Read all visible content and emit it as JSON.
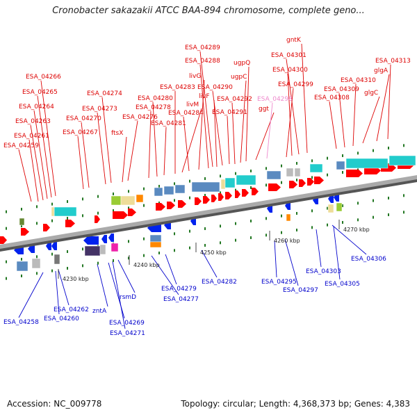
{
  "title": "Cronobacter sakazakii ATCC BAA-894 chromosome, complete geno...",
  "footer": {
    "accession": "Accession: NC_009778",
    "topology": "Topology: circular; Length: 4,368,373 bp; Genes: 4,383"
  },
  "colors": {
    "forward_label": "#dd0000",
    "reverse_label": "#0000cc",
    "highlight_label": "#ee88cc",
    "cds": "#ff0000",
    "cds_reverse": "#0022ee",
    "cog_blue": "#5a8ac0",
    "cog_cyan": "#22cccc",
    "cog_grey": "#bbbbbb",
    "cog_green": "#99cc33",
    "cog_khaki": "#eedd99",
    "cog_orange": "#ff8800",
    "cog_purple": "#443366",
    "cog_magenta": "#ee22aa",
    "backbone": "#888888",
    "tick": "#227722"
  },
  "ticks": [
    {
      "text": "4230 kbp"
    },
    {
      "text": "4240 kbp"
    },
    {
      "text": "4250 kbp"
    },
    {
      "text": "4260 kbp"
    },
    {
      "text": "4270 kbp"
    }
  ],
  "forward_labels": [
    {
      "text": "ESA_04259"
    },
    {
      "text": "ESA_04261"
    },
    {
      "text": "ESA_04263"
    },
    {
      "text": "ESA_04264"
    },
    {
      "text": "ESA_04265"
    },
    {
      "text": "ESA_04266"
    },
    {
      "text": "ESA_04267"
    },
    {
      "text": "ESA_04270"
    },
    {
      "text": "ESA_04273"
    },
    {
      "text": "ESA_04274"
    },
    {
      "text": "ftsX"
    },
    {
      "text": "ESA_04276"
    },
    {
      "text": "ESA_04278"
    },
    {
      "text": "ESA_04280"
    },
    {
      "text": "ESA_04281"
    },
    {
      "text": "ESA_04283"
    },
    {
      "text": "livM"
    },
    {
      "text": "ESA_04284"
    },
    {
      "text": "livG"
    },
    {
      "text": "ESA_04288"
    },
    {
      "text": "ESA_04289"
    },
    {
      "text": "livF"
    },
    {
      "text": "ESA_04290"
    },
    {
      "text": "ESA_04291"
    },
    {
      "text": "ESA_04292"
    },
    {
      "text": "ugpC"
    },
    {
      "text": "ugpQ"
    },
    {
      "text": "ggt"
    },
    {
      "text": "ESA_04298",
      "highlight": true
    },
    {
      "text": "ESA_04299"
    },
    {
      "text": "ESA_04300"
    },
    {
      "text": "ESA_04301"
    },
    {
      "text": "gntK"
    },
    {
      "text": "ESA_04308"
    },
    {
      "text": "ESA_04309"
    },
    {
      "text": "ESA_04310"
    },
    {
      "text": "glgC"
    },
    {
      "text": "glgA"
    },
    {
      "text": "ESA_04313"
    }
  ],
  "reverse_labels": [
    {
      "text": "ESA_04258"
    },
    {
      "text": "ESA_04260"
    },
    {
      "text": "ESA_04262"
    },
    {
      "text": "zntA"
    },
    {
      "text": "ESA_04269"
    },
    {
      "text": "ESA_04271"
    },
    {
      "text": "rsmD"
    },
    {
      "text": "ESA_04277"
    },
    {
      "text": "ESA_04279"
    },
    {
      "text": "ESA_04282"
    },
    {
      "text": "ESA_04295"
    },
    {
      "text": "ESA_04297"
    },
    {
      "text": "ESA_04303"
    },
    {
      "text": "ESA_04305"
    },
    {
      "text": "ESA_04306"
    }
  ]
}
